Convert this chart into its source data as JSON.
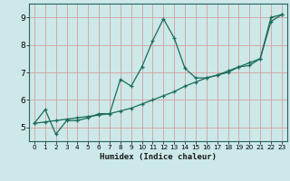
{
  "title": "",
  "xlabel": "Humidex (Indice chaleur)",
  "background_color": "#cce8e8",
  "grid_color": "#d4a0a0",
  "line_color": "#1a6b5a",
  "xlim": [
    -0.5,
    23.5
  ],
  "ylim": [
    4.5,
    9.5
  ],
  "xticks": [
    0,
    1,
    2,
    3,
    4,
    5,
    6,
    7,
    8,
    9,
    10,
    11,
    12,
    13,
    14,
    15,
    16,
    17,
    18,
    19,
    20,
    21,
    22,
    23
  ],
  "yticks": [
    5,
    6,
    7,
    8,
    9
  ],
  "line1_x": [
    0,
    1,
    2,
    3,
    4,
    5,
    6,
    7,
    8,
    9,
    10,
    11,
    12,
    13,
    14,
    15,
    16,
    17,
    18,
    19,
    20,
    21,
    22,
    23
  ],
  "line1_y": [
    5.15,
    5.65,
    4.75,
    5.25,
    5.25,
    5.35,
    5.5,
    5.5,
    6.75,
    6.5,
    7.2,
    8.15,
    8.95,
    8.25,
    7.15,
    6.8,
    6.8,
    6.9,
    7.0,
    7.2,
    7.25,
    7.5,
    9.0,
    9.1
  ],
  "line2_x": [
    0,
    1,
    2,
    3,
    4,
    5,
    6,
    7,
    8,
    9,
    10,
    11,
    12,
    13,
    14,
    15,
    16,
    17,
    18,
    19,
    20,
    21,
    22,
    23
  ],
  "line2_y": [
    5.15,
    5.2,
    5.25,
    5.3,
    5.35,
    5.4,
    5.45,
    5.5,
    5.6,
    5.7,
    5.85,
    6.0,
    6.15,
    6.3,
    6.5,
    6.65,
    6.8,
    6.9,
    7.05,
    7.2,
    7.35,
    7.5,
    8.85,
    9.1
  ]
}
